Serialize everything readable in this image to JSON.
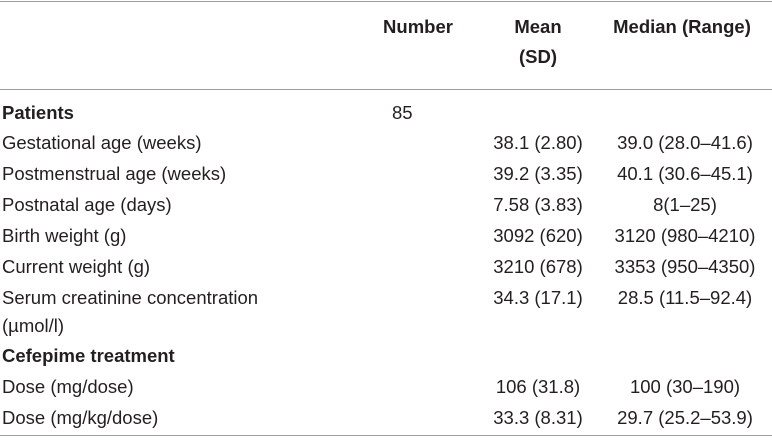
{
  "header": {
    "number": "Number",
    "mean": "Mean\n(SD)",
    "median": "Median (Range)"
  },
  "rows": [
    {
      "label": "Patients",
      "number": "85",
      "mean": "",
      "median": ""
    },
    {
      "label": "Gestational age (weeks)",
      "number": "",
      "mean": "38.1 (2.80)",
      "median": "39.0 (28.0–41.6)"
    },
    {
      "label": "Postmenstrual age (weeks)",
      "number": "",
      "mean": "39.2 (3.35)",
      "median": "40.1 (30.6–45.1)"
    },
    {
      "label": "Postnatal age (days)",
      "number": "",
      "mean": "7.58 (3.83)",
      "median": "8(1–25)"
    },
    {
      "label": "Birth weight (g)",
      "number": "",
      "mean": "3092 (620)",
      "median": "3120 (980–4210)"
    },
    {
      "label": "Current weight (g)",
      "number": "",
      "mean": "3210 (678)",
      "median": "3353 (950–4350)"
    },
    {
      "label": "Serum creatinine concentration",
      "label2": "(µmol/l)",
      "number": "",
      "mean": "34.3 (17.1)",
      "median": "28.5 (11.5–92.4)"
    },
    {
      "label": "Cefepime treatment",
      "number": "",
      "mean": "",
      "median": ""
    },
    {
      "label": "Dose (mg/dose)",
      "number": "",
      "mean": "106 (31.8)",
      "median": "100 (30–190)"
    },
    {
      "label": "Dose (mg/kg/dose)",
      "number": "",
      "mean": "33.3 (8.31)",
      "median": "29.7 (25.2–53.9)"
    }
  ]
}
